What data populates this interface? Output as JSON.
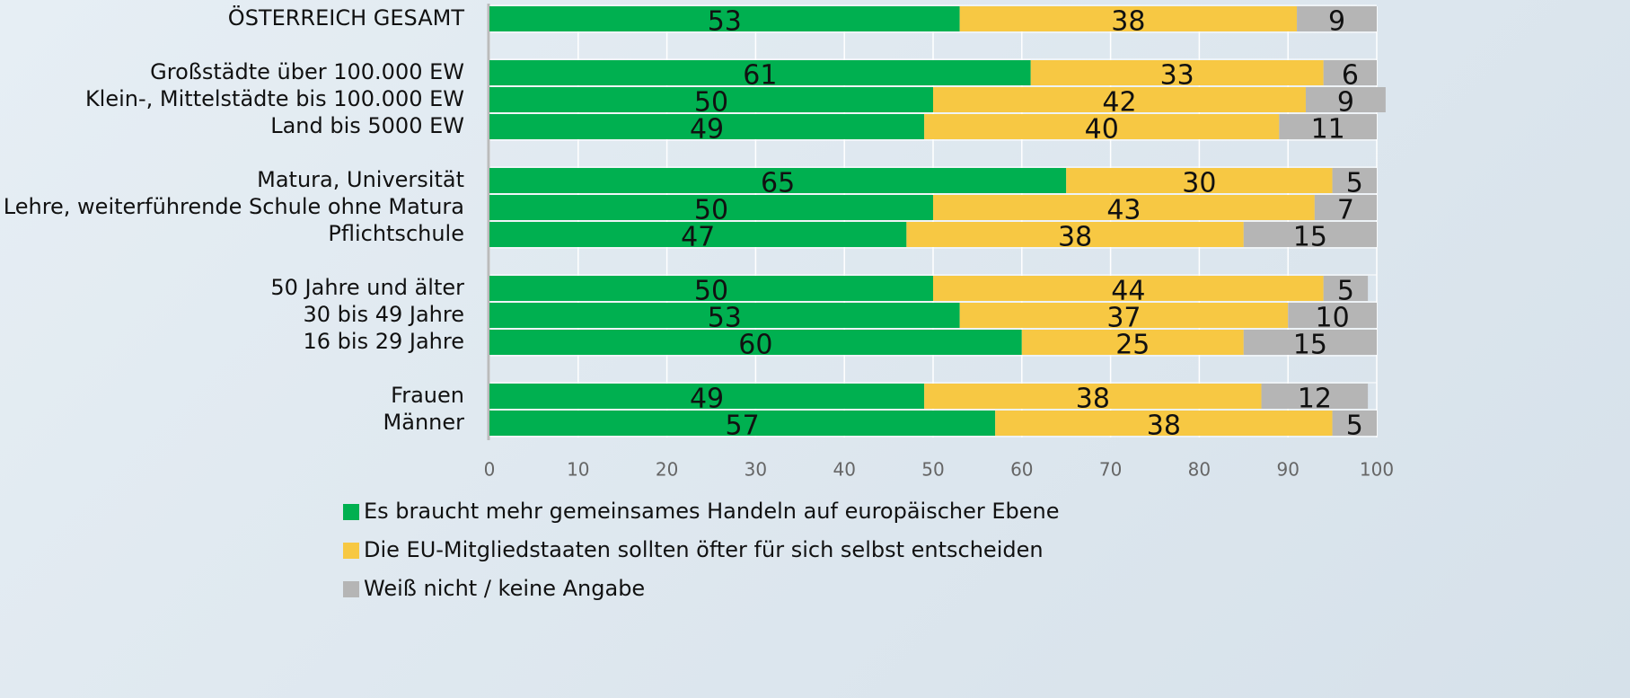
{
  "chart_data": {
    "type": "stacked_barh",
    "categories": [
      "ÖSTERREICH GESAMT",
      null,
      "Großstädte über 100.000 EW",
      "Klein-, Mittelstädte bis 100.000 EW",
      "Land bis 5000 EW",
      null,
      "Matura, Universität",
      "Lehre, weiterführende Schule ohne Matura",
      "Pflichtschule",
      null,
      "50 Jahre und älter",
      "30 bis 49 Jahre",
      "16 bis 29 Jahre",
      null,
      "Frauen",
      "Männer"
    ],
    "series": [
      {
        "name": "Es braucht mehr gemeinsames Handeln auf europäischer Ebene",
        "color": "#00b050",
        "values": [
          53,
          null,
          61,
          50,
          49,
          null,
          65,
          50,
          47,
          null,
          50,
          53,
          60,
          null,
          49,
          57
        ]
      },
      {
        "name": "Die EU-Mitgliedstaaten sollten öfter für sich selbst entscheiden",
        "color": "#f7c843",
        "values": [
          38,
          null,
          33,
          42,
          40,
          null,
          30,
          43,
          38,
          null,
          44,
          37,
          25,
          null,
          38,
          38
        ]
      },
      {
        "name": "Weiß nicht / keine Angabe",
        "color": "#b5b5b5",
        "values": [
          9,
          null,
          6,
          9,
          11,
          null,
          5,
          7,
          15,
          null,
          5,
          10,
          15,
          null,
          12,
          5
        ]
      }
    ],
    "xlim": [
      0,
      100
    ],
    "xticks": [
      0,
      10,
      20,
      30,
      40,
      50,
      60,
      70,
      80,
      90,
      100
    ],
    "grid": true
  }
}
